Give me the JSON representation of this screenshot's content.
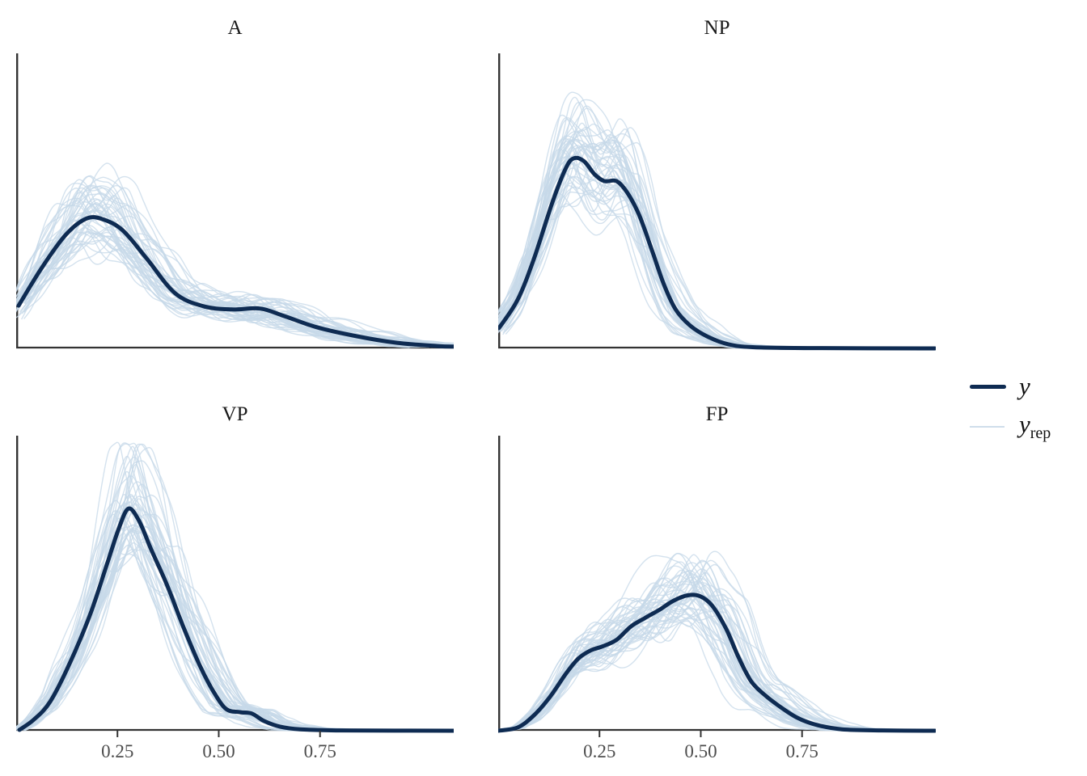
{
  "chart_data": {
    "type": "line",
    "subtype": "density_overlay",
    "description": "Posterior predictive check: observed density y overlaid with replicated densities y_rep, faceted by category",
    "grid": {
      "rows": 2,
      "cols": 2
    },
    "x_axis": {
      "range": [
        0,
        1.08
      ],
      "ticks": [
        0.25,
        0.5,
        0.75
      ],
      "tick_labels": [
        "0.25",
        "0.50",
        "0.75"
      ],
      "ticks_shown_on": "bottom row only"
    },
    "y_axis": {
      "ticks": [],
      "tick_labels": []
    },
    "legend_position": "right",
    "legend": [
      {
        "label": "y",
        "sub": "",
        "line": "thick"
      },
      {
        "label": "y",
        "sub": "rep",
        "line": "thin"
      }
    ],
    "n_rep": 48,
    "seed": 20,
    "y_curve_format": "[x_value, density_as_fraction_of_panel_height]",
    "facets": [
      {
        "label": "A",
        "show_x_ticks": false,
        "y_curve": [
          [
            0.006,
            0.145
          ],
          [
            0.064,
            0.275
          ],
          [
            0.123,
            0.386
          ],
          [
            0.173,
            0.44
          ],
          [
            0.213,
            0.438
          ],
          [
            0.263,
            0.4
          ],
          [
            0.323,
            0.303
          ],
          [
            0.392,
            0.187
          ],
          [
            0.462,
            0.143
          ],
          [
            0.532,
            0.132
          ],
          [
            0.602,
            0.135
          ],
          [
            0.661,
            0.11
          ],
          [
            0.741,
            0.072
          ],
          [
            0.841,
            0.041
          ],
          [
            0.94,
            0.019
          ],
          [
            1.04,
            0.008
          ],
          [
            1.08,
            0.006
          ]
        ]
      },
      {
        "label": "NP",
        "show_x_ticks": false,
        "y_curve": [
          [
            0.002,
            0.069
          ],
          [
            0.048,
            0.165
          ],
          [
            0.088,
            0.303
          ],
          [
            0.134,
            0.496
          ],
          [
            0.168,
            0.614
          ],
          [
            0.188,
            0.645
          ],
          [
            0.212,
            0.634
          ],
          [
            0.238,
            0.59
          ],
          [
            0.262,
            0.567
          ],
          [
            0.292,
            0.567
          ],
          [
            0.318,
            0.529
          ],
          [
            0.348,
            0.452
          ],
          [
            0.378,
            0.339
          ],
          [
            0.408,
            0.22
          ],
          [
            0.438,
            0.132
          ],
          [
            0.474,
            0.077
          ],
          [
            0.518,
            0.039
          ],
          [
            0.568,
            0.014
          ],
          [
            0.628,
            0.004
          ],
          [
            0.768,
            0.001
          ],
          [
            1.078,
            0.0
          ]
        ]
      },
      {
        "label": "VP",
        "show_x_ticks": true,
        "y_curve": [
          [
            0.008,
            0.003
          ],
          [
            0.044,
            0.038
          ],
          [
            0.084,
            0.099
          ],
          [
            0.133,
            0.231
          ],
          [
            0.183,
            0.396
          ],
          [
            0.223,
            0.56
          ],
          [
            0.253,
            0.684
          ],
          [
            0.277,
            0.753
          ],
          [
            0.303,
            0.712
          ],
          [
            0.333,
            0.615
          ],
          [
            0.373,
            0.492
          ],
          [
            0.412,
            0.354
          ],
          [
            0.452,
            0.225
          ],
          [
            0.486,
            0.135
          ],
          [
            0.518,
            0.074
          ],
          [
            0.552,
            0.063
          ],
          [
            0.582,
            0.058
          ],
          [
            0.612,
            0.033
          ],
          [
            0.651,
            0.014
          ],
          [
            0.701,
            0.005
          ],
          [
            0.801,
            0.001
          ],
          [
            1.08,
            0.0
          ]
        ]
      },
      {
        "label": "FP",
        "show_x_ticks": true,
        "y_curve": [
          [
            0.0,
            0.0
          ],
          [
            0.048,
            0.011
          ],
          [
            0.088,
            0.052
          ],
          [
            0.128,
            0.115
          ],
          [
            0.168,
            0.195
          ],
          [
            0.198,
            0.245
          ],
          [
            0.228,
            0.272
          ],
          [
            0.258,
            0.286
          ],
          [
            0.292,
            0.308
          ],
          [
            0.328,
            0.354
          ],
          [
            0.362,
            0.382
          ],
          [
            0.398,
            0.41
          ],
          [
            0.432,
            0.44
          ],
          [
            0.468,
            0.459
          ],
          [
            0.498,
            0.456
          ],
          [
            0.528,
            0.424
          ],
          [
            0.562,
            0.347
          ],
          [
            0.592,
            0.253
          ],
          [
            0.624,
            0.168
          ],
          [
            0.658,
            0.121
          ],
          [
            0.692,
            0.085
          ],
          [
            0.738,
            0.044
          ],
          [
            0.788,
            0.019
          ],
          [
            0.848,
            0.005
          ],
          [
            0.948,
            0.001
          ],
          [
            1.078,
            0.0
          ]
        ]
      }
    ],
    "colors": {
      "y": "#0e2b52",
      "y_rep": "#c6d8e8",
      "y_rep_legend": "#cfdeeb",
      "axis": "#333333",
      "tick_label": "#4d4d4d",
      "title": "#1a1a1a",
      "background": "#ffffff"
    }
  }
}
